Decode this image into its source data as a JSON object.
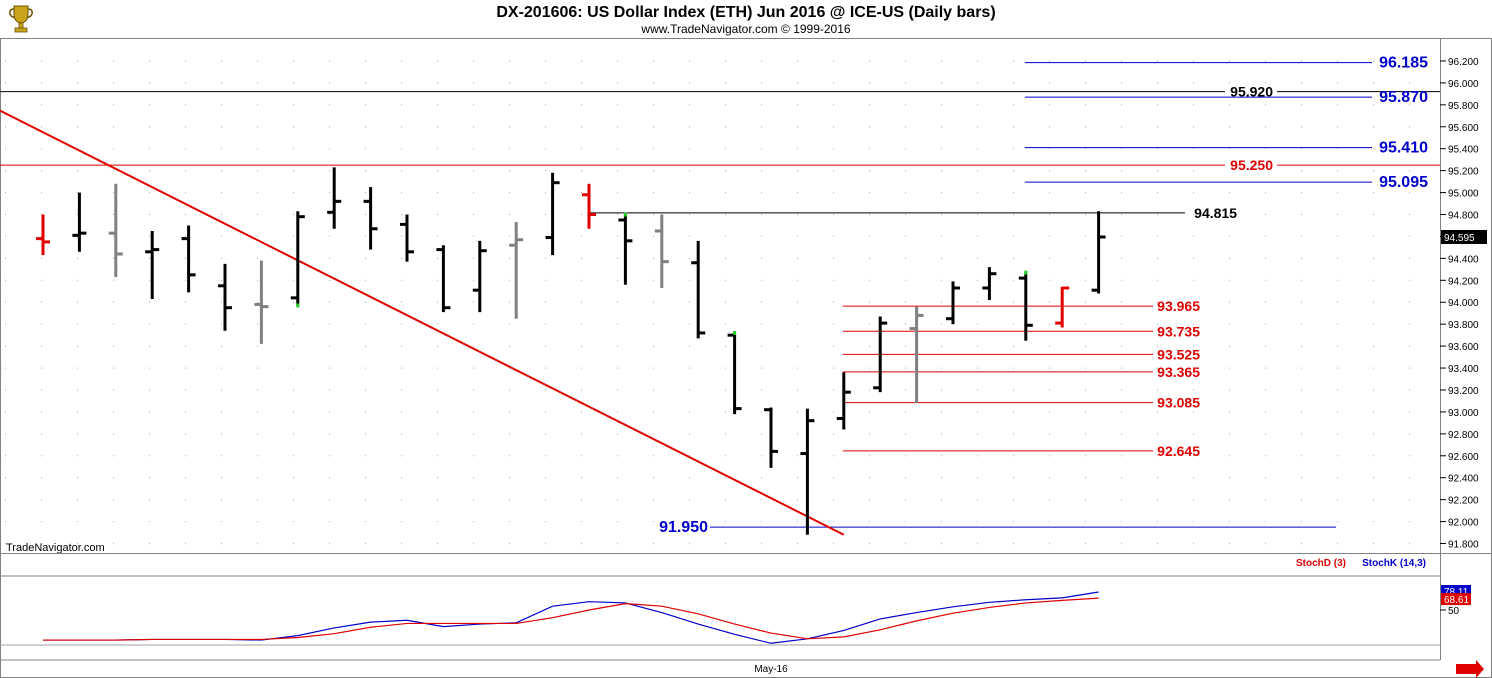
{
  "header": {
    "title": "DX-201606:  US Dollar Index (ETH) Jun 2016 @ ICE-US  (Daily bars)",
    "subtitle": "www.TradeNavigator.com © 1999-2016",
    "watermark": "TradeNavigator.com",
    "logo_icon": "trophy-logo-icon"
  },
  "chart_data": [
    {
      "type": "ohlc",
      "ylim": [
        91.75,
        96.3
      ],
      "y_ticks": [
        "96.200",
        "96.000",
        "95.800",
        "95.600",
        "95.400",
        "95.200",
        "95.000",
        "94.800",
        "94.600",
        "94.400",
        "94.200",
        "94.000",
        "93.800",
        "93.600",
        "93.400",
        "93.200",
        "93.000",
        "92.800",
        "92.600",
        "92.400",
        "92.200",
        "92.000",
        "91.800"
      ],
      "last_price_label": "94.595",
      "colors": {
        "up": "#000000",
        "down": "#000000",
        "red_bar": "#e00000",
        "gray_bar": "#808080",
        "level_red": "#e00000",
        "level_blue": "#0000cc",
        "level_black": "#000000",
        "trendline": "#e00000"
      },
      "bars": [
        {
          "h": 94.8,
          "l": 94.43,
          "o": 94.58,
          "c": 94.55,
          "color": "red"
        },
        {
          "h": 95.0,
          "l": 94.46,
          "o": 94.61,
          "c": 94.63,
          "color": "black"
        },
        {
          "h": 95.08,
          "l": 94.23,
          "o": 94.63,
          "c": 94.44,
          "color": "gray"
        },
        {
          "h": 94.65,
          "l": 94.03,
          "o": 94.46,
          "c": 94.48,
          "color": "black"
        },
        {
          "h": 94.7,
          "l": 94.09,
          "o": 94.58,
          "c": 94.25,
          "color": "black"
        },
        {
          "h": 94.35,
          "l": 93.74,
          "o": 94.15,
          "c": 93.95,
          "color": "black"
        },
        {
          "h": 94.38,
          "l": 93.62,
          "o": 93.98,
          "c": 93.96,
          "color": "gray"
        },
        {
          "h": 94.83,
          "l": 93.97,
          "o": 94.04,
          "c": 94.78,
          "color": "black",
          "marker": true
        },
        {
          "h": 95.23,
          "l": 94.67,
          "o": 94.82,
          "c": 94.92,
          "color": "black"
        },
        {
          "h": 95.05,
          "l": 94.48,
          "o": 94.92,
          "c": 94.67,
          "color": "black"
        },
        {
          "h": 94.8,
          "l": 94.37,
          "o": 94.71,
          "c": 94.46,
          "color": "black"
        },
        {
          "h": 94.52,
          "l": 93.91,
          "o": 94.48,
          "c": 93.95,
          "color": "black"
        },
        {
          "h": 94.56,
          "l": 93.91,
          "o": 94.11,
          "c": 94.47,
          "color": "black"
        },
        {
          "h": 94.73,
          "l": 93.85,
          "o": 94.52,
          "c": 94.57,
          "color": "gray"
        },
        {
          "h": 95.18,
          "l": 94.43,
          "o": 94.59,
          "c": 95.09,
          "color": "black"
        },
        {
          "h": 95.08,
          "l": 94.67,
          "o": 94.98,
          "c": 94.8,
          "color": "red"
        },
        {
          "h": 94.8,
          "l": 94.16,
          "o": 94.75,
          "c": 94.56,
          "color": "black",
          "marker": true
        },
        {
          "h": 94.8,
          "l": 94.13,
          "o": 94.65,
          "c": 94.37,
          "color": "gray"
        },
        {
          "h": 94.56,
          "l": 93.67,
          "o": 94.36,
          "c": 93.72,
          "color": "black"
        },
        {
          "h": 93.72,
          "l": 92.98,
          "o": 93.7,
          "c": 93.03,
          "color": "black",
          "marker": true
        },
        {
          "h": 93.04,
          "l": 92.49,
          "o": 93.02,
          "c": 92.64,
          "color": "black"
        },
        {
          "h": 93.03,
          "l": 91.88,
          "o": 92.62,
          "c": 92.92,
          "color": "black"
        },
        {
          "h": 93.36,
          "l": 92.84,
          "o": 92.94,
          "c": 93.18,
          "color": "black"
        },
        {
          "h": 93.87,
          "l": 93.18,
          "o": 93.22,
          "c": 93.81,
          "color": "black"
        },
        {
          "h": 93.96,
          "l": 93.08,
          "o": 93.76,
          "c": 93.88,
          "color": "gray"
        },
        {
          "h": 94.19,
          "l": 93.8,
          "o": 93.85,
          "c": 94.13,
          "color": "black"
        },
        {
          "h": 94.32,
          "l": 94.02,
          "o": 94.13,
          "c": 94.26,
          "color": "black"
        },
        {
          "h": 94.27,
          "l": 93.65,
          "o": 94.22,
          "c": 93.79,
          "color": "black",
          "marker": true
        },
        {
          "h": 94.14,
          "l": 93.77,
          "o": 93.81,
          "c": 94.13,
          "color": "red"
        },
        {
          "h": 94.83,
          "l": 94.08,
          "o": 94.11,
          "c": 94.595,
          "color": "black"
        }
      ],
      "levels": [
        {
          "value": 96.185,
          "label": "96.185",
          "color": "blue",
          "from_bar": 27
        },
        {
          "value": 95.92,
          "label": "95.920",
          "color": "black",
          "from_bar": -1
        },
        {
          "value": 95.87,
          "label": "95.870",
          "color": "blue",
          "from_bar": 27
        },
        {
          "value": 95.41,
          "label": "95.410",
          "color": "blue",
          "from_bar": 27
        },
        {
          "value": 95.25,
          "label": "95.250",
          "color": "red",
          "from_bar": -1
        },
        {
          "value": 95.095,
          "label": "95.095",
          "color": "blue",
          "from_bar": 27
        },
        {
          "value": 94.815,
          "label": "94.815",
          "color": "black",
          "from_bar": 15
        },
        {
          "value": 93.965,
          "label": "93.965",
          "color": "red",
          "from_bar": 22
        },
        {
          "value": 93.735,
          "label": "93.735",
          "color": "red",
          "from_bar": 22
        },
        {
          "value": 93.525,
          "label": "93.525",
          "color": "red",
          "from_bar": 22
        },
        {
          "value": 93.365,
          "label": "93.365",
          "color": "red",
          "from_bar": 22
        },
        {
          "value": 93.085,
          "label": "93.085",
          "color": "red",
          "from_bar": 22
        },
        {
          "value": 92.645,
          "label": "92.645",
          "color": "red",
          "from_bar": 22
        },
        {
          "value": 91.95,
          "label": "91.950",
          "color": "blue",
          "from_bar": 20
        }
      ],
      "trendline": {
        "from": {
          "bar": -1.2,
          "value": 95.75
        },
        "to": {
          "bar": 22,
          "value": 91.88
        }
      }
    },
    {
      "type": "line",
      "legend": [
        "StochD (3)",
        "StochK (14,3)"
      ],
      "ylim": [
        0,
        100
      ],
      "y_ticks": [
        "50"
      ],
      "value_labels": {
        "k": "78.11",
        "d": "68.61"
      },
      "x_label": "May-16",
      "series": [
        {
          "name": "StochK (14,3)",
          "color": "#0000cc",
          "values": [
            3,
            3,
            3,
            4,
            4,
            4,
            3,
            10,
            22,
            31,
            34,
            24,
            28,
            30,
            56,
            63,
            61,
            46,
            28,
            12,
            -2,
            5,
            18,
            36,
            46,
            55,
            62,
            66,
            69,
            78.11
          ]
        },
        {
          "name": "StochD (3)",
          "color": "#e00000",
          "values": [
            3,
            3,
            3,
            4,
            4,
            4,
            4,
            7,
            13,
            23,
            29,
            29,
            29,
            29,
            38,
            50,
            60,
            56,
            44,
            28,
            14,
            5,
            8,
            19,
            33,
            45,
            54,
            61,
            65,
            68.61
          ]
        }
      ]
    }
  ]
}
